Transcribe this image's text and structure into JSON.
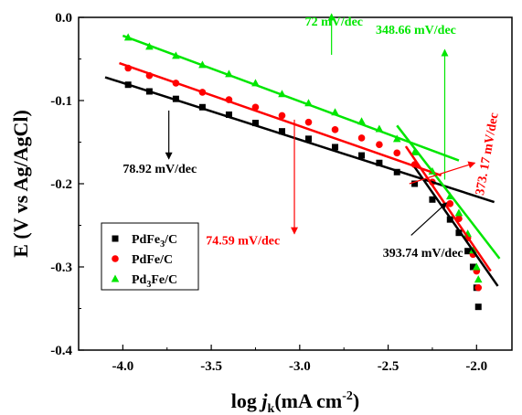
{
  "chart_data": {
    "type": "scatter",
    "xlabel": {
      "pre": "log ",
      "var": "j",
      "sub": "k",
      "mid": "(mA cm",
      "sup": "-2",
      "post": ")"
    },
    "ylabel": "E (V vs Ag/AgCl)",
    "xlim": [
      -4.25,
      -1.8
    ],
    "ylim": [
      -0.4,
      0.0
    ],
    "xticks": [
      -4.0,
      -3.5,
      -3.0,
      -2.5,
      -2.0
    ],
    "xtick_labels": [
      "-4.0",
      "-3.5",
      "-3.0",
      "-2.5",
      "-2.0"
    ],
    "yticks": [
      0.0,
      -0.1,
      -0.2,
      -0.3,
      -0.4
    ],
    "ytick_labels": [
      "0.0",
      "-0.1",
      "-0.2",
      "-0.3",
      "-0.4"
    ],
    "grid": false,
    "legend_position": "bottom-left",
    "series": [
      {
        "name": "PdFe3/C",
        "legend": {
          "main": "PdFe",
          "sub": "3",
          "tail": "/C"
        },
        "color": "#000000",
        "marker": "square",
        "points": [
          [
            -3.97,
            -0.081
          ],
          [
            -3.85,
            -0.089
          ],
          [
            -3.7,
            -0.098
          ],
          [
            -3.55,
            -0.108
          ],
          [
            -3.4,
            -0.117
          ],
          [
            -3.25,
            -0.127
          ],
          [
            -3.1,
            -0.137
          ],
          [
            -2.95,
            -0.146
          ],
          [
            -2.8,
            -0.156
          ],
          [
            -2.65,
            -0.166
          ],
          [
            -2.55,
            -0.175
          ],
          [
            -2.45,
            -0.186
          ],
          [
            -2.35,
            -0.2
          ],
          [
            -2.25,
            -0.219
          ],
          [
            -2.15,
            -0.243
          ],
          [
            -2.1,
            -0.259
          ],
          [
            -2.05,
            -0.281
          ],
          [
            -2.02,
            -0.3
          ],
          [
            -2.0,
            -0.325
          ],
          [
            -1.99,
            -0.348
          ]
        ]
      },
      {
        "name": "PdFe/C",
        "legend": {
          "main": "PdFe",
          "sub": "",
          "tail": "/C"
        },
        "color": "#ff0000",
        "marker": "circle",
        "points": [
          [
            -3.97,
            -0.061
          ],
          [
            -3.85,
            -0.07
          ],
          [
            -3.7,
            -0.079
          ],
          [
            -3.55,
            -0.09
          ],
          [
            -3.4,
            -0.099
          ],
          [
            -3.25,
            -0.108
          ],
          [
            -3.1,
            -0.118
          ],
          [
            -2.95,
            -0.126
          ],
          [
            -2.8,
            -0.135
          ],
          [
            -2.65,
            -0.145
          ],
          [
            -2.55,
            -0.153
          ],
          [
            -2.45,
            -0.163
          ],
          [
            -2.35,
            -0.177
          ],
          [
            -2.25,
            -0.198
          ],
          [
            -2.15,
            -0.224
          ],
          [
            -2.1,
            -0.242
          ],
          [
            -2.05,
            -0.265
          ],
          [
            -2.02,
            -0.285
          ],
          [
            -2.0,
            -0.305
          ],
          [
            -1.99,
            -0.325
          ]
        ]
      },
      {
        "name": "Pd3Fe/C",
        "legend": {
          "main": "Pd",
          "sub": "3",
          "tail": "Fe/C"
        },
        "color": "#00e600",
        "marker": "triangle",
        "points": [
          [
            -3.97,
            -0.024
          ],
          [
            -3.85,
            -0.035
          ],
          [
            -3.7,
            -0.046
          ],
          [
            -3.55,
            -0.057
          ],
          [
            -3.4,
            -0.068
          ],
          [
            -3.25,
            -0.079
          ],
          [
            -3.1,
            -0.092
          ],
          [
            -2.95,
            -0.103
          ],
          [
            -2.8,
            -0.114
          ],
          [
            -2.65,
            -0.125
          ],
          [
            -2.55,
            -0.134
          ],
          [
            -2.45,
            -0.146
          ],
          [
            -2.35,
            -0.162
          ],
          [
            -2.25,
            -0.185
          ],
          [
            -2.15,
            -0.215
          ],
          [
            -2.1,
            -0.235
          ],
          [
            -2.05,
            -0.26
          ],
          [
            -2.02,
            -0.28
          ],
          [
            -2.0,
            -0.3
          ],
          [
            -1.99,
            -0.315
          ]
        ]
      }
    ],
    "fit_lines": [
      {
        "color": "#000000",
        "from": [
          -4.1,
          -0.072
        ],
        "to": [
          -1.9,
          -0.222
        ]
      },
      {
        "color": "#000000",
        "from": [
          -2.35,
          -0.18
        ],
        "to": [
          -1.88,
          -0.323
        ]
      },
      {
        "color": "#ff0000",
        "from": [
          -4.02,
          -0.055
        ],
        "to": [
          -2.2,
          -0.19
        ]
      },
      {
        "color": "#ff0000",
        "from": [
          -2.4,
          -0.155
        ],
        "to": [
          -1.92,
          -0.305
        ]
      },
      {
        "color": "#00e600",
        "from": [
          -4.0,
          -0.022
        ],
        "to": [
          -2.1,
          -0.172
        ]
      },
      {
        "color": "#00e600",
        "from": [
          -2.45,
          -0.13
        ],
        "to": [
          -1.87,
          -0.29
        ]
      }
    ],
    "annotations": [
      {
        "text": "72 mV/dec",
        "color": "#00e600",
        "text_at": [
          -2.97,
          -0.01
        ],
        "anchor": "start",
        "rotate": 0,
        "arrow_from": [
          -2.82,
          0.004
        ],
        "arrow_to": [
          -2.82,
          -0.045
        ],
        "arrow_head": "from"
      },
      {
        "text": "348.66 mV/dec",
        "color": "#00e600",
        "text_at": [
          -2.57,
          -0.02
        ],
        "anchor": "start",
        "rotate": 0,
        "arrow_from": [
          -2.18,
          -0.039
        ],
        "arrow_to": [
          -2.18,
          -0.195
        ],
        "arrow_head": "from"
      },
      {
        "text": "78.92 mV/dec",
        "color": "#000000",
        "text_at": [
          -4.0,
          -0.187
        ],
        "anchor": "start",
        "rotate": 0,
        "arrow_from": [
          -3.74,
          -0.17
        ],
        "arrow_to": [
          -3.74,
          -0.112
        ],
        "arrow_head": "from"
      },
      {
        "text": "74.59 mV/dec",
        "color": "#ff0000",
        "text_at": [
          -3.53,
          -0.273
        ],
        "anchor": "start",
        "rotate": 0,
        "arrow_from": [
          -3.03,
          -0.123
        ],
        "arrow_to": [
          -3.03,
          -0.26
        ],
        "arrow_head": "to"
      },
      {
        "text": "373. 17 mV/dec",
        "color": "#ff0000",
        "text_at": [
          -1.92,
          -0.165
        ],
        "anchor": "middle",
        "rotate": -80,
        "arrow_from": [
          -2.38,
          -0.2
        ],
        "arrow_to": [
          -2.01,
          -0.175
        ],
        "arrow_head": "to"
      },
      {
        "text": "393.74 mV/dec",
        "color": "#000000",
        "text_at": [
          -2.53,
          -0.288
        ],
        "anchor": "start",
        "rotate": 0,
        "arrow_from": [
          -2.37,
          -0.262
        ],
        "arrow_to": [
          -2.17,
          -0.223
        ],
        "arrow_head": "to"
      }
    ]
  }
}
